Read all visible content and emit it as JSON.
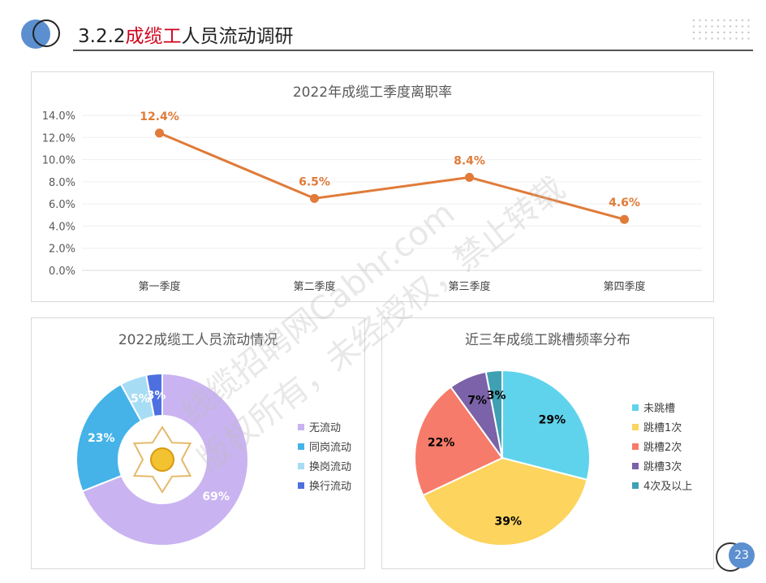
{
  "header": {
    "title_prefix": "3.2.2",
    "title_highlight": "成缆工",
    "title_suffix": "人员流动调研"
  },
  "page_number": "23",
  "watermark": {
    "line1": "线缆招聘网Cabhr.com",
    "line2": "版权所有，未经授权，禁止转载"
  },
  "colors": {
    "accent_blue": "#5b8fd0",
    "title_red": "#d0021b",
    "line_orange": "#e07b39"
  },
  "chart_data": [
    {
      "type": "line",
      "title": "2022年成缆工季度离职率",
      "categories": [
        "第一季度",
        "第二季度",
        "第三季度",
        "第四季度"
      ],
      "series": [
        {
          "values": [
            12.4,
            6.5,
            8.4,
            4.6
          ],
          "color": "#e07b39"
        }
      ],
      "data_labels": [
        "12.4%",
        "6.5%",
        "8.4%",
        "4.6%"
      ],
      "ylim": [
        0,
        14
      ],
      "yticks": [
        "0.0%",
        "2.0%",
        "4.0%",
        "6.0%",
        "8.0%",
        "10.0%",
        "12.0%",
        "14.0%"
      ],
      "grid": true
    },
    {
      "type": "pie",
      "title": "2022成缆工人员流动情况",
      "donut": true,
      "slices": [
        {
          "name": "无流动",
          "value": 69,
          "label": "69%",
          "color": "#c9b3f0"
        },
        {
          "name": "同岗流动",
          "value": 23,
          "label": "23%",
          "color": "#45b3e8"
        },
        {
          "name": "换岗流动",
          "value": 5,
          "label": "5%",
          "color": "#a7dcf5"
        },
        {
          "name": "换行流动",
          "value": 3,
          "label": "3%",
          "color": "#4d6fe0"
        }
      ],
      "legend": "right"
    },
    {
      "type": "pie",
      "title": "近三年成缆工跳槽频率分布",
      "slices": [
        {
          "name": "未跳槽",
          "value": 29,
          "label": "29%",
          "color": "#5fd3ec"
        },
        {
          "name": "跳槽1次",
          "value": 39,
          "label": "39%",
          "color": "#fcd45e"
        },
        {
          "name": "跳槽2次",
          "value": 22,
          "label": "22%",
          "color": "#f77b6a"
        },
        {
          "name": "跳槽3次",
          "value": 7,
          "label": "7%",
          "color": "#7c62a8"
        },
        {
          "name": "4次及以上",
          "value": 3,
          "label": "3%",
          "color": "#3fa0b3"
        }
      ],
      "legend": "right"
    }
  ]
}
